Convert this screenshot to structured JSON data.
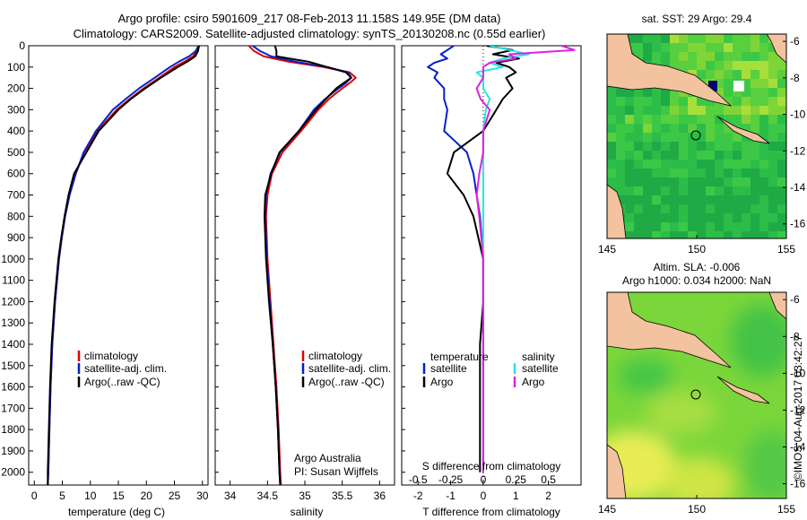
{
  "header": {
    "title_line1": "Argo profile: csiro 5901609_217 08-Feb-2013 11.158S 149.95E (DM data)",
    "title_line2": "Climatology: CARS2009. Satellite-adjusted climatology: synTS_20130208.nc (0.55d earlier)"
  },
  "colors": {
    "climatology": "#e00000",
    "satellite": "#0022cc",
    "argo": "#000000",
    "sal_satellite": "#22e6e6",
    "sal_argo": "#e020e0",
    "land": "#f3c29e"
  },
  "footer": {
    "credit": "Argo Australia",
    "pi": "PI: Susan Wijffels",
    "timestamp": "©IMOS 04-Aug-2017 03:42:27"
  },
  "legend": {
    "climatology": "climatology",
    "satellite_adj": "satellite-adj. clim.",
    "argo": "Argo(..raw -QC)",
    "temperature_head": "temperature",
    "salinity_head": "salinity",
    "satellite": "satellite",
    "argo_short": "Argo"
  },
  "maps": {
    "sst_title": "sat. SST: 29 Argo: 29.4",
    "sla_title1": "Altim. SLA: -0.006",
    "sla_title2": "Argo h1000: 0.034 h2000: NaN"
  },
  "chart_data": [
    {
      "type": "line",
      "name": "temperature profile",
      "xlabel": "temperature (deg C)",
      "ylabel": "",
      "xlim": [
        -1,
        31
      ],
      "ylim": [
        2060,
        0
      ],
      "xticks": [
        "0",
        "5",
        "10",
        "15",
        "20",
        "25",
        "30"
      ],
      "yticks": [
        "0",
        "100",
        "200",
        "300",
        "400",
        "500",
        "600",
        "700",
        "800",
        "900",
        "1000",
        "1100",
        "1200",
        "1300",
        "1400",
        "1500",
        "1600",
        "1700",
        "1800",
        "1900",
        "2000"
      ],
      "depth": [
        0,
        25,
        50,
        75,
        100,
        150,
        200,
        250,
        300,
        400,
        500,
        600,
        700,
        800,
        900,
        1000,
        1200,
        1400,
        1600,
        1800,
        2000,
        2060
      ],
      "series": [
        {
          "name": "climatology",
          "values": [
            29.3,
            29.0,
            28.3,
            26.8,
            25.0,
            22.3,
            19.5,
            17.0,
            14.7,
            11.3,
            8.9,
            7.4,
            6.3,
            5.5,
            4.9,
            4.4,
            3.7,
            3.2,
            2.9,
            2.7,
            2.5,
            2.4
          ]
        },
        {
          "name": "satellite",
          "values": [
            29.3,
            28.8,
            27.6,
            25.8,
            24.2,
            21.5,
            18.7,
            16.3,
            14.0,
            11.0,
            8.8,
            7.4,
            6.3,
            5.5,
            4.9,
            4.4,
            3.7,
            3.2,
            2.9,
            2.7,
            2.5,
            2.4
          ]
        },
        {
          "name": "Argo",
          "values": [
            29.4,
            29.2,
            28.7,
            27.3,
            25.6,
            22.6,
            19.8,
            17.2,
            15.0,
            11.5,
            9.3,
            7.1,
            6.1,
            5.4,
            4.8,
            4.3,
            3.6,
            3.1,
            2.8,
            2.6,
            2.4,
            2.4
          ]
        }
      ]
    },
    {
      "type": "line",
      "name": "salinity profile",
      "xlabel": "salinity",
      "xlim": [
        33.8,
        36.2
      ],
      "ylim": [
        2060,
        0
      ],
      "xticks": [
        "34",
        "34.5",
        "35",
        "35.5",
        "36"
      ],
      "depth": [
        0,
        25,
        50,
        75,
        100,
        125,
        150,
        175,
        200,
        250,
        300,
        400,
        500,
        600,
        700,
        800,
        1000,
        1200,
        1400,
        1600,
        1800,
        2000,
        2060
      ],
      "series": [
        {
          "name": "climatology",
          "values": [
            34.25,
            34.32,
            34.45,
            34.78,
            35.25,
            35.6,
            35.68,
            35.6,
            35.5,
            35.32,
            35.18,
            34.95,
            34.7,
            34.56,
            34.5,
            34.48,
            34.5,
            34.54,
            34.58,
            34.62,
            34.65,
            34.67,
            34.68
          ]
        },
        {
          "name": "satellite",
          "values": [
            34.3,
            34.4,
            34.55,
            34.88,
            35.3,
            35.58,
            35.62,
            35.55,
            35.45,
            35.27,
            35.12,
            34.92,
            34.67,
            34.54,
            34.48,
            34.47,
            34.49,
            34.53,
            34.57,
            34.61,
            34.64,
            34.66,
            34.67
          ]
        },
        {
          "name": "Argo",
          "values": [
            34.6,
            34.62,
            34.62,
            35.05,
            35.3,
            35.55,
            35.62,
            35.52,
            35.42,
            35.28,
            35.15,
            34.92,
            34.66,
            34.55,
            34.47,
            34.46,
            34.48,
            34.52,
            34.57,
            34.61,
            34.64,
            34.66,
            34.67
          ]
        }
      ]
    },
    {
      "type": "line",
      "name": "differences from climatology",
      "xlabel_s": "S difference from climatology",
      "xlabel_t": "T difference from climatology",
      "t_lim": [
        -2.5,
        3
      ],
      "s_lim": [
        -0.625,
        0.75
      ],
      "t_ticks": [
        "-2",
        "-1",
        "0",
        "1",
        "2"
      ],
      "s_ticks": [
        "-0.5",
        "-0.25",
        "0",
        "0.25",
        "0.5"
      ],
      "ylim": [
        2060,
        0
      ],
      "depth": [
        0,
        20,
        40,
        60,
        80,
        100,
        125,
        150,
        200,
        250,
        300,
        400,
        500,
        600,
        700,
        800,
        1000,
        1200,
        1400,
        1600,
        1800,
        2000
      ],
      "series": [
        {
          "name": "T satellite",
          "values": [
            -0.9,
            -1.1,
            -1.3,
            -1.1,
            -1.5,
            -1.7,
            -1.4,
            -1.5,
            -1.2,
            -1.2,
            -1.1,
            -1.2,
            -0.5,
            -0.3,
            -0.2,
            -0.1,
            0.0,
            0.0,
            0.0,
            0.0,
            0.0,
            0.0
          ]
        },
        {
          "name": "T Argo",
          "values": [
            0.1,
            0.9,
            0.3,
            1.1,
            0.4,
            0.8,
            1.0,
            0.7,
            0.9,
            0.6,
            0.4,
            0.0,
            -0.9,
            -1.1,
            -0.6,
            -0.3,
            0.0,
            0.0,
            -0.1,
            -0.1,
            -0.1,
            -0.1
          ]
        },
        {
          "name": "S satellite",
          "values": [
            0.05,
            0.2,
            0.35,
            0.15,
            0.05,
            0.15,
            -0.05,
            0.0,
            0.0,
            0.05,
            0.02,
            0.0,
            0.0,
            0.0,
            0.0,
            0.0,
            0.0,
            0.0,
            0.0,
            0.0,
            0.0,
            0.0
          ]
        },
        {
          "name": "S Argo",
          "values": [
            0.6,
            0.7,
            0.2,
            0.25,
            0.05,
            0.0,
            0.0,
            0.0,
            -0.05,
            -0.02,
            0.05,
            0.0,
            0.0,
            -0.03,
            -0.05,
            -0.03,
            0.0,
            0.0,
            0.0,
            0.0,
            0.0,
            0.0
          ]
        }
      ]
    },
    {
      "type": "heatmap",
      "name": "satellite SST map",
      "xticks": [
        "145",
        "150",
        "155"
      ],
      "yticks": [
        "-6",
        "-8",
        "-10",
        "-12",
        "-14",
        "-16"
      ],
      "xlim": [
        145,
        155
      ],
      "ylim": [
        -16.8,
        -5.6
      ],
      "float_position": {
        "lon": 149.95,
        "lat": -11.158
      }
    },
    {
      "type": "heatmap",
      "name": "altimeter SLA map",
      "xticks": [
        "145",
        "150",
        "155"
      ],
      "yticks": [
        "-6",
        "-8",
        "-10",
        "-12",
        "-14",
        "-16"
      ],
      "xlim": [
        145,
        155
      ],
      "ylim": [
        -16.8,
        -5.6
      ],
      "float_position": {
        "lon": 149.95,
        "lat": -11.158
      }
    }
  ]
}
